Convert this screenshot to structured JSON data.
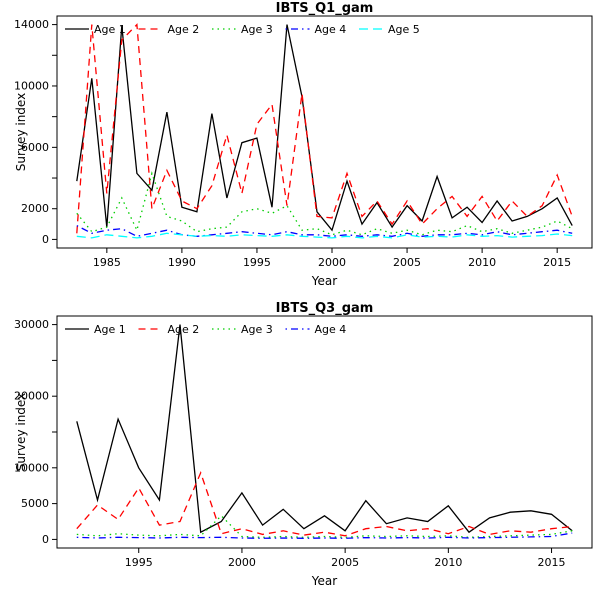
{
  "chart_data": [
    {
      "type": "line",
      "title": "IBTS_Q1_gam",
      "xlabel": "Year",
      "ylabel": "Survey index",
      "xlim": [
        1983,
        2016
      ],
      "ylim": [
        0,
        14000
      ],
      "grid": false,
      "legend_position": "top-left-horizontal",
      "xticks": [
        {
          "v": 1985,
          "label": "1985"
        },
        {
          "v": 1990,
          "label": "1990"
        },
        {
          "v": 1995,
          "label": "1995"
        },
        {
          "v": 2000,
          "label": "2000"
        },
        {
          "v": 2005,
          "label": "2005"
        },
        {
          "v": 2010,
          "label": "2010"
        },
        {
          "v": 2015,
          "label": "2015"
        }
      ],
      "yticks": [
        {
          "v": 0,
          "label": "0"
        },
        {
          "v": 2000,
          "label": "2000"
        },
        {
          "v": 4000,
          "label": ""
        },
        {
          "v": 6000,
          "label": "6000"
        },
        {
          "v": 8000,
          "label": ""
        },
        {
          "v": 10000,
          "label": "10000"
        },
        {
          "v": 12000,
          "label": ""
        },
        {
          "v": 14000,
          "label": "14000"
        }
      ],
      "x": [
        1983,
        1984,
        1985,
        1986,
        1987,
        1988,
        1989,
        1990,
        1991,
        1992,
        1993,
        1994,
        1995,
        1996,
        1997,
        1998,
        1999,
        2000,
        2001,
        2002,
        2003,
        2004,
        2005,
        2006,
        2007,
        2008,
        2009,
        2010,
        2011,
        2012,
        2013,
        2014,
        2015,
        2016
      ],
      "series": [
        {
          "name": "Age 1",
          "color": "#000000",
          "lty": "solid",
          "values": [
            3800,
            10500,
            800,
            13900,
            4300,
            3200,
            8300,
            2100,
            1800,
            8200,
            2700,
            6300,
            6600,
            2100,
            14000,
            9300,
            1800,
            600,
            3800,
            1000,
            2400,
            800,
            2200,
            1200,
            4100,
            1400,
            2100,
            1100,
            2500,
            1200,
            1500,
            2000,
            2700,
            900
          ]
        },
        {
          "name": "Age 2",
          "color": "#ff0000",
          "lty": "dashed",
          "values": [
            400,
            14000,
            3000,
            13000,
            14000,
            2000,
            4500,
            2500,
            2000,
            3500,
            6800,
            3000,
            7500,
            8800,
            2200,
            9500,
            1500,
            1400,
            4300,
            1500,
            2500,
            1000,
            2500,
            1000,
            2000,
            2800,
            1500,
            2800,
            1200,
            2500,
            1500,
            2200,
            4200,
            1500
          ]
        },
        {
          "name": "Age 3",
          "color": "#00cd00",
          "lty": "dotted",
          "values": [
            1700,
            500,
            800,
            2700,
            600,
            4300,
            1500,
            1200,
            500,
            700,
            800,
            1800,
            2000,
            1700,
            2200,
            600,
            700,
            300,
            600,
            300,
            700,
            400,
            600,
            300,
            600,
            500,
            900,
            500,
            700,
            400,
            600,
            800,
            1200,
            700
          ]
        },
        {
          "name": "Age 4",
          "color": "#0000ff",
          "lty": "dotdash",
          "values": [
            900,
            400,
            600,
            700,
            200,
            400,
            600,
            300,
            200,
            300,
            400,
            500,
            400,
            300,
            500,
            300,
            300,
            200,
            300,
            200,
            300,
            200,
            400,
            200,
            300,
            300,
            400,
            300,
            500,
            300,
            400,
            500,
            600,
            400
          ]
        },
        {
          "name": "Age 5",
          "color": "#00ffff",
          "lty": "longdash",
          "values": [
            200,
            100,
            300,
            200,
            100,
            200,
            400,
            300,
            200,
            250,
            200,
            300,
            250,
            200,
            300,
            200,
            150,
            100,
            200,
            100,
            200,
            100,
            300,
            150,
            200,
            150,
            300,
            200,
            250,
            150,
            200,
            250,
            350,
            250
          ]
        }
      ]
    },
    {
      "type": "line",
      "title": "IBTS_Q3_gam",
      "xlabel": "Year",
      "ylabel": "Survey index",
      "xlim": [
        1992,
        2016
      ],
      "ylim": [
        0,
        30000
      ],
      "grid": false,
      "legend_position": "top-left-horizontal",
      "xticks": [
        {
          "v": 1995,
          "label": "1995"
        },
        {
          "v": 2000,
          "label": "2000"
        },
        {
          "v": 2005,
          "label": "2005"
        },
        {
          "v": 2010,
          "label": "2010"
        },
        {
          "v": 2015,
          "label": "2015"
        }
      ],
      "yticks": [
        {
          "v": 0,
          "label": "0"
        },
        {
          "v": 5000,
          "label": "5000"
        },
        {
          "v": 10000,
          "label": "10000"
        },
        {
          "v": 15000,
          "label": ""
        },
        {
          "v": 20000,
          "label": "20000"
        },
        {
          "v": 25000,
          "label": ""
        },
        {
          "v": 30000,
          "label": "30000"
        }
      ],
      "x": [
        1992,
        1993,
        1994,
        1995,
        1996,
        1997,
        1998,
        1999,
        2000,
        2001,
        2002,
        2003,
        2004,
        2005,
        2006,
        2007,
        2008,
        2009,
        2010,
        2011,
        2012,
        2013,
        2014,
        2015,
        2016
      ],
      "series": [
        {
          "name": "Age 1",
          "color": "#000000",
          "lty": "solid",
          "values": [
            16500,
            5500,
            16800,
            10000,
            5500,
            30000,
            1000,
            2500,
            6500,
            2000,
            4200,
            1500,
            3300,
            1200,
            5400,
            2200,
            3000,
            2500,
            4700,
            1000,
            3000,
            3800,
            4000,
            3500,
            1200
          ]
        },
        {
          "name": "Age 2",
          "color": "#ff0000",
          "lty": "dashed",
          "values": [
            1500,
            4800,
            2800,
            7200,
            2000,
            2500,
            9300,
            800,
            1500,
            700,
            1200,
            600,
            1000,
            500,
            1500,
            1800,
            1200,
            1500,
            800,
            1800,
            700,
            1200,
            1000,
            1500,
            1800
          ]
        },
        {
          "name": "Age 3",
          "color": "#00cd00",
          "lty": "dotted",
          "values": [
            700,
            500,
            800,
            600,
            500,
            700,
            500,
            3300,
            400,
            300,
            400,
            300,
            400,
            300,
            500,
            400,
            500,
            400,
            500,
            300,
            400,
            500,
            600,
            700,
            1200
          ]
        },
        {
          "name": "Age 4",
          "color": "#0000ff",
          "lty": "dotdash",
          "values": [
            300,
            200,
            300,
            250,
            200,
            300,
            250,
            300,
            200,
            150,
            200,
            150,
            200,
            150,
            250,
            200,
            250,
            200,
            300,
            200,
            250,
            300,
            350,
            400,
            900
          ]
        }
      ]
    }
  ]
}
